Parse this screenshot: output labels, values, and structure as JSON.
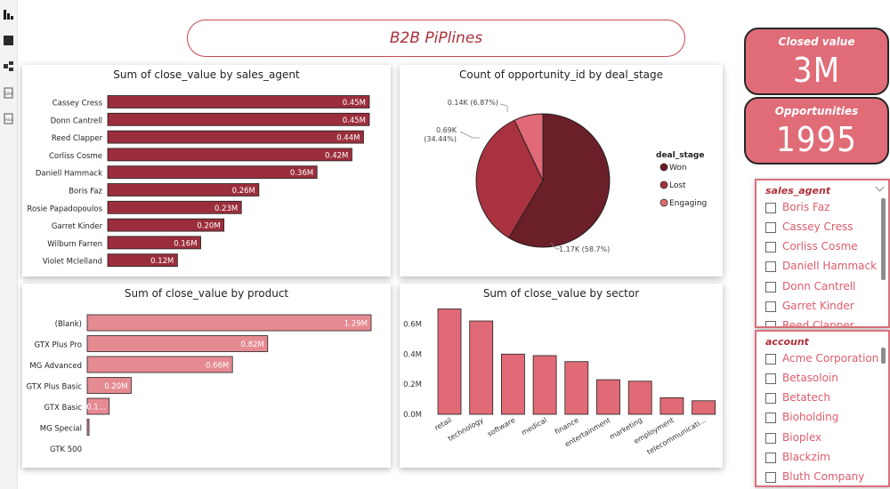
{
  "title": "B2B PiPlines",
  "kpis": {
    "closed_value_label": "Closed value",
    "closed_value": "3M",
    "opportunities_label": "Opportunities",
    "opportunities": "1995"
  },
  "colors": {
    "agent_bar": "#9b2e3c",
    "product_bar": "#e68a92",
    "sector_bar": "#e06a75",
    "won": "#6b1f28",
    "lost": "#a8323e",
    "engaging": "#e06a75",
    "accent": "#d9707a"
  },
  "slicer_agent": {
    "header": "sales_agent",
    "items": [
      "Boris Faz",
      "Cassey Cress",
      "Corliss Cosme",
      "Daniell Hammack",
      "Donn Cantrell",
      "Garret Kinder",
      "Reed Clapper"
    ]
  },
  "slicer_account": {
    "header": "account",
    "items": [
      "Acme Corporation",
      "Betasoloin",
      "Betatech",
      "Bioholding",
      "Bioplex",
      "Blackzim",
      "Bluth Company"
    ]
  },
  "chart_data": [
    {
      "type": "bar",
      "orientation": "horizontal",
      "title": "Sum of close_value by sales_agent",
      "categories": [
        "Cassey Cress",
        "Donn Cantrell",
        "Reed Clapper",
        "Corliss Cosme",
        "Daniell Hammack",
        "Boris Faz",
        "Rosie Papadopoulos",
        "Garret Kinder",
        "Wilburn Farren",
        "Violet Mclelland"
      ],
      "values": [
        0.45,
        0.45,
        0.44,
        0.42,
        0.36,
        0.26,
        0.23,
        0.2,
        0.16,
        0.12
      ],
      "data_labels": [
        "0.45M",
        "0.45M",
        "0.44M",
        "0.42M",
        "0.36M",
        "0.26M",
        "0.23M",
        "0.20M",
        "0.16M",
        "0.12M"
      ],
      "unit": "M"
    },
    {
      "type": "pie",
      "title": "Count of opportunity_id by deal_stage",
      "legend_title": "deal_stage",
      "legend_position": "right",
      "slices": [
        {
          "name": "Won",
          "value": 1170,
          "label1": "1.17K (58.7%)",
          "label2": ""
        },
        {
          "name": "Lost",
          "value": 690,
          "label1": "0.69K",
          "label2": "(34.44%)"
        },
        {
          "name": "Engaging",
          "value": 140,
          "label1": "0.14K (6.87%)",
          "label2": ""
        }
      ]
    },
    {
      "type": "bar",
      "orientation": "horizontal",
      "title": "Sum of close_value by product",
      "categories": [
        "(Blank)",
        "GTX Plus Pro",
        "MG Advanced",
        "GTX Plus Basic",
        "GTX Basic",
        "MG Special",
        "GTK 500"
      ],
      "values": [
        1.29,
        0.82,
        0.66,
        0.2,
        0.1,
        0.005,
        0
      ],
      "data_labels": [
        "1.29M",
        "0.82M",
        "0.66M",
        "0.20M",
        "0.1...",
        "",
        ""
      ],
      "unit": "M"
    },
    {
      "type": "bar",
      "orientation": "vertical",
      "title": "Sum of close_value by sector",
      "categories": [
        "retail",
        "technology",
        "software",
        "medical",
        "finance",
        "entertainment",
        "marketing",
        "employment",
        "telecommunicati..."
      ],
      "values": [
        0.7,
        0.62,
        0.4,
        0.39,
        0.35,
        0.23,
        0.22,
        0.11,
        0.09
      ],
      "yticks": [
        "0.0M",
        "0.2M",
        "0.4M",
        "0.6M"
      ],
      "ytick_values": [
        0,
        0.2,
        0.4,
        0.6
      ],
      "ylim": [
        0,
        0.75
      ]
    }
  ]
}
